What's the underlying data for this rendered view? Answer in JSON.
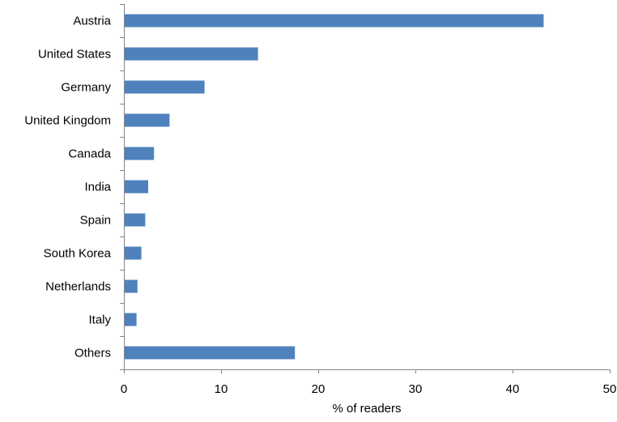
{
  "chart_data": {
    "type": "bar",
    "orientation": "horizontal",
    "title": "",
    "xlabel": "% of readers",
    "ylabel": "",
    "categories": [
      "Austria",
      "United States",
      "Germany",
      "United Kingdom",
      "Canada",
      "India",
      "Spain",
      "South Korea",
      "Netherlands",
      "Italy",
      "Others"
    ],
    "values": [
      43.2,
      13.8,
      8.3,
      4.7,
      3.1,
      2.5,
      2.2,
      1.8,
      1.4,
      1.3,
      17.6
    ],
    "xlim": [
      0,
      50
    ],
    "xticks": [
      "0",
      "10",
      "20",
      "30",
      "40",
      "50"
    ],
    "bar_color": "#4f81bd",
    "grid": false,
    "legend": "none"
  }
}
